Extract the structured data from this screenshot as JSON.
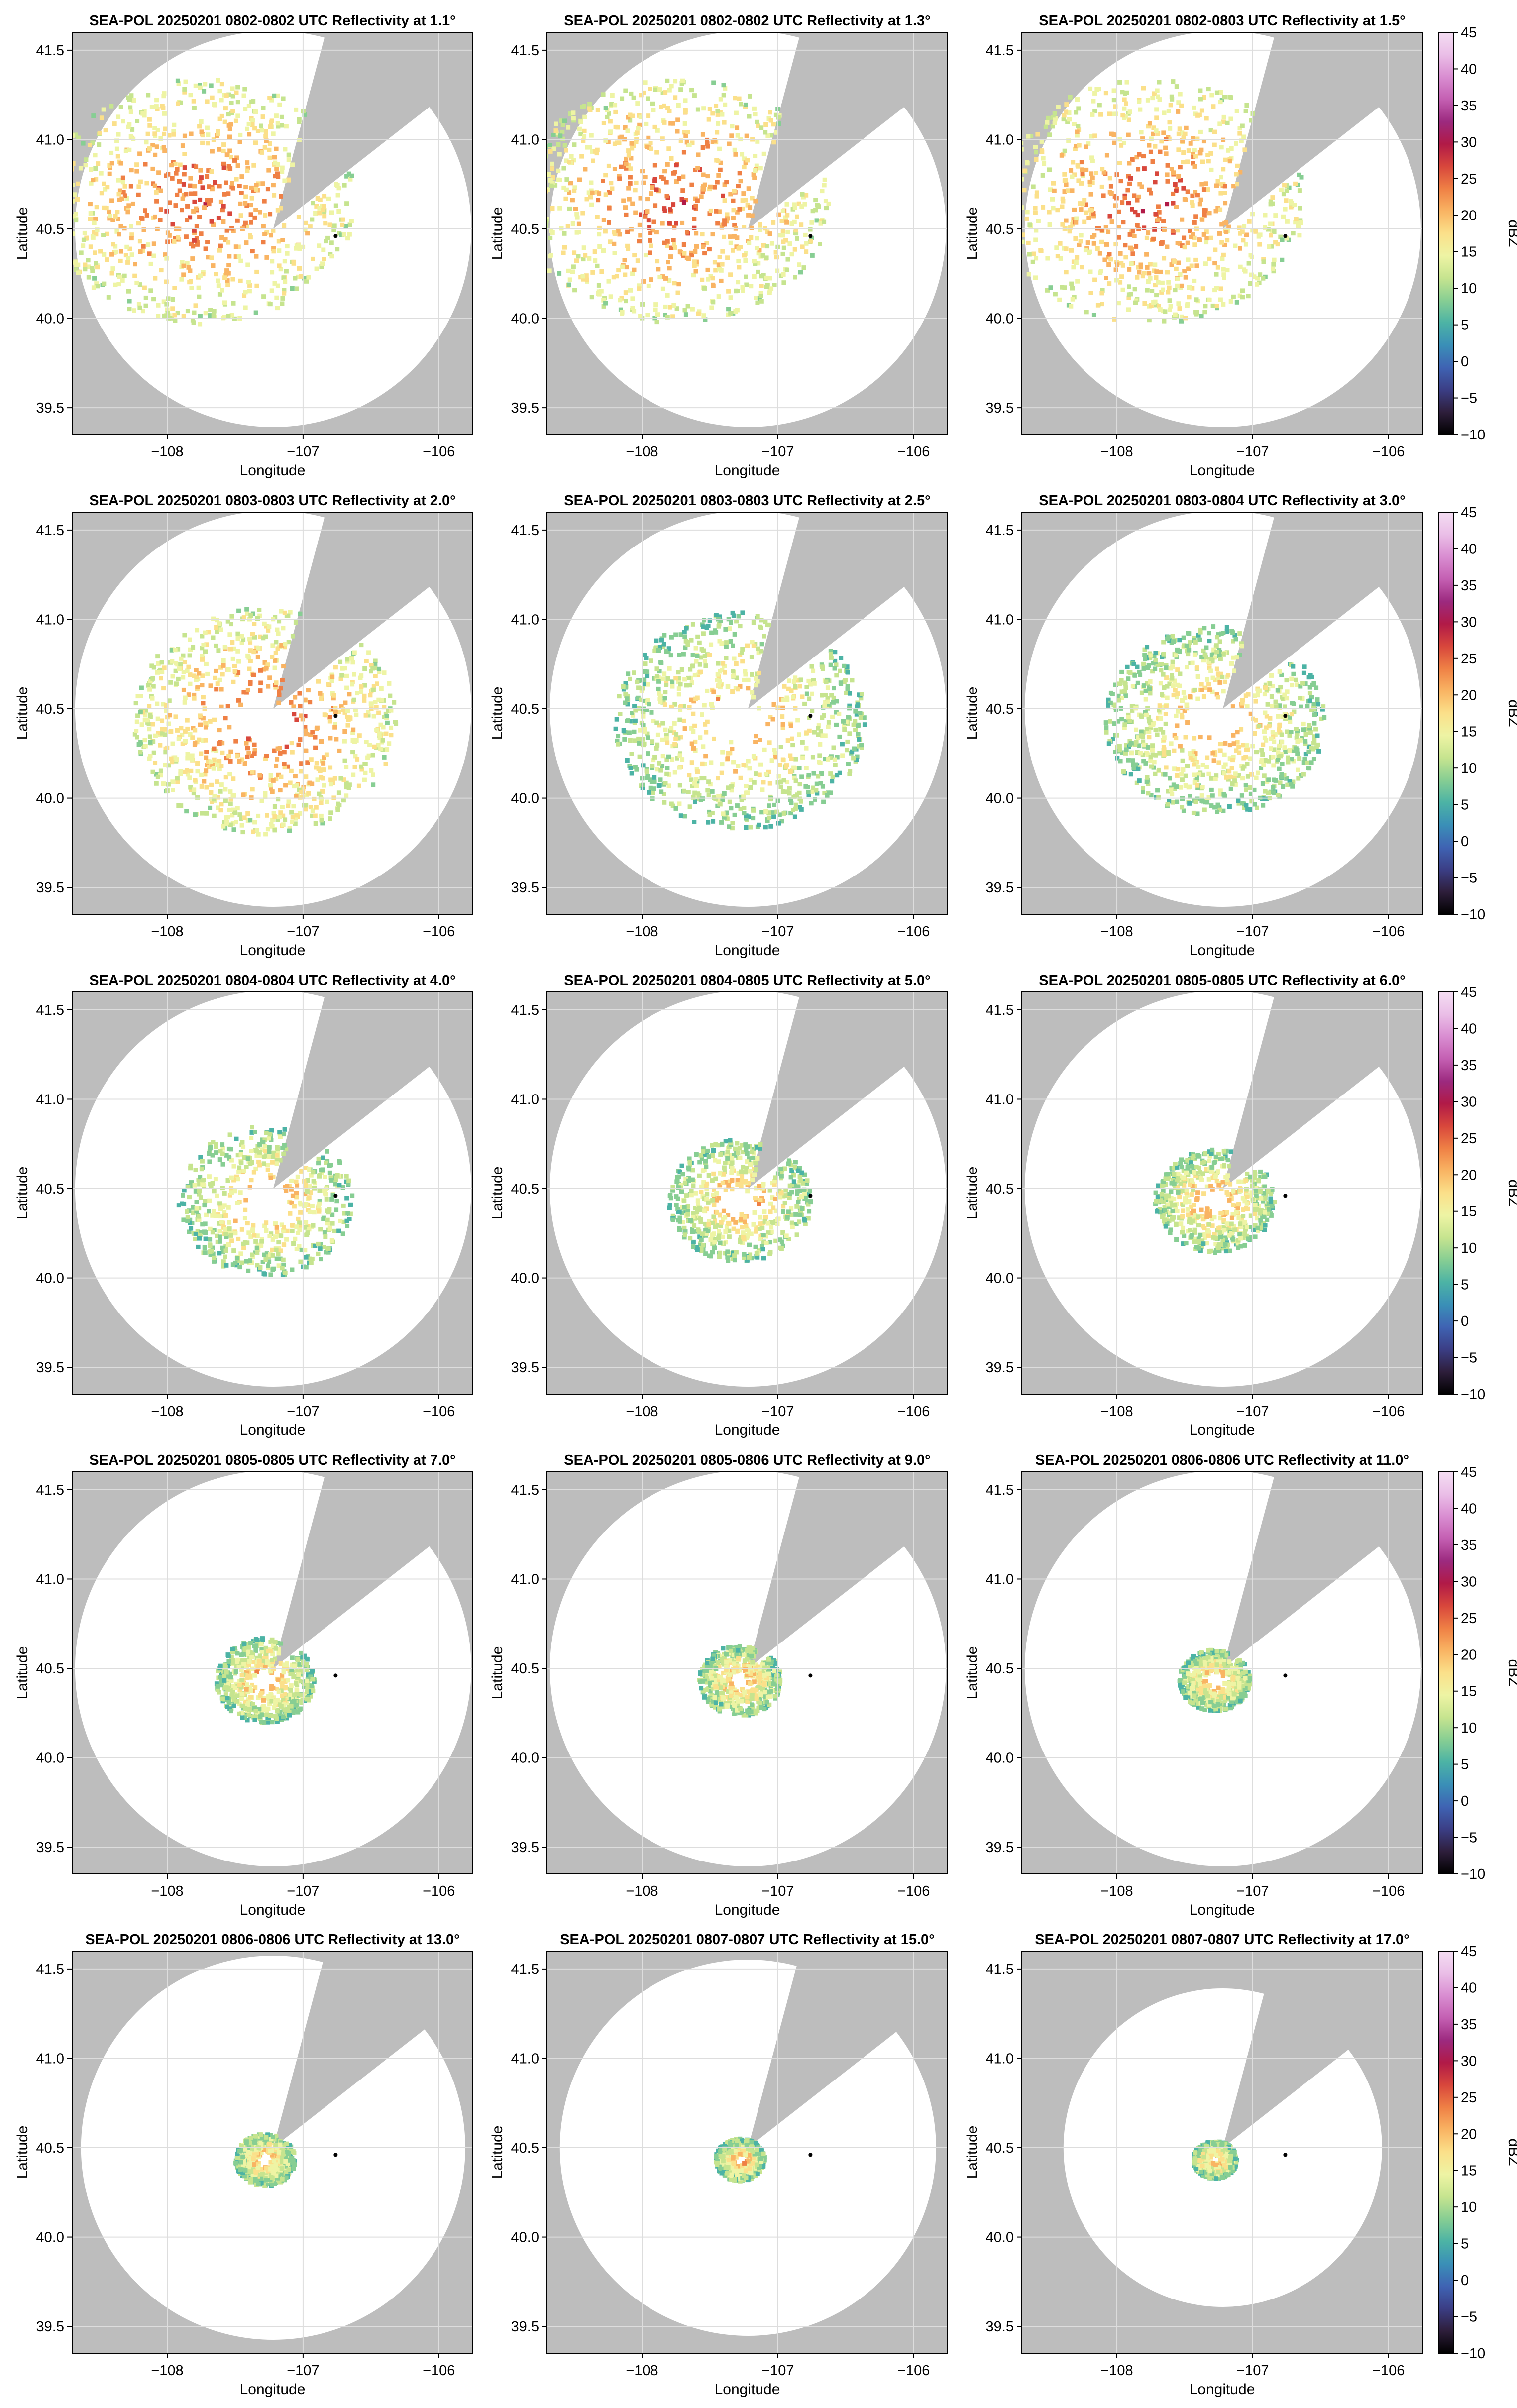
{
  "figure": {
    "xlabel": "Longitude",
    "ylabel": "Latitude",
    "xticks": [
      -108,
      -107,
      -106
    ],
    "yticks": [
      39.5,
      40.0,
      40.5,
      41.0,
      41.5
    ],
    "xlim": [
      -108.7,
      -105.75
    ],
    "ylim": [
      39.35,
      41.6
    ],
    "colorbar_label": "dBZ",
    "colorbar_ticks": [
      -10,
      -5,
      0,
      5,
      10,
      15,
      20,
      25,
      30,
      35,
      40,
      45
    ],
    "colorbar_range": [
      -10,
      45
    ],
    "colormap": [
      "#000000",
      "#2e1e3b",
      "#3b3e85",
      "#3f63b3",
      "#3a8fb7",
      "#4cb3a5",
      "#87ce93",
      "#c6e48f",
      "#eef4a4",
      "#fbe08a",
      "#f9b463",
      "#ef8045",
      "#d8473c",
      "#b11a47",
      "#9c2a7f",
      "#c45fb2",
      "#d98dd1",
      "#eabee7",
      "#f4ddf2"
    ],
    "colors": {
      "masked": "#bdbdbd",
      "sweep": "#ffffff",
      "grid": "#dddddd",
      "radar_site_marker": "#000000"
    },
    "radar_site": {
      "lon": -106.76,
      "lat": 40.46
    },
    "sweep_center": {
      "lon": -107.22,
      "lat": 40.5
    }
  },
  "chart_data": [
    {
      "type": "heatmap",
      "title": "SEA-POL 20250201 0802-0802 UTC Reflectivity at 1.1°"
    },
    {
      "type": "heatmap",
      "title": "SEA-POL 20250201 0802-0802 UTC Reflectivity at 1.3°"
    },
    {
      "type": "heatmap",
      "title": "SEA-POL 20250201 0802-0803 UTC Reflectivity at 1.5°"
    },
    {
      "type": "heatmap",
      "title": "SEA-POL 20250201 0803-0803 UTC Reflectivity at 2.0°"
    },
    {
      "type": "heatmap",
      "title": "SEA-POL 20250201 0803-0803 UTC Reflectivity at 2.5°"
    },
    {
      "type": "heatmap",
      "title": "SEA-POL 20250201 0803-0804 UTC Reflectivity at 3.0°"
    },
    {
      "type": "heatmap",
      "title": "SEA-POL 20250201 0804-0804 UTC Reflectivity at 4.0°"
    },
    {
      "type": "heatmap",
      "title": "SEA-POL 20250201 0804-0805 UTC Reflectivity at 5.0°"
    },
    {
      "type": "heatmap",
      "title": "SEA-POL 20250201 0805-0805 UTC Reflectivity at 6.0°"
    },
    {
      "type": "heatmap",
      "title": "SEA-POL 20250201 0805-0805 UTC Reflectivity at 7.0°"
    },
    {
      "type": "heatmap",
      "title": "SEA-POL 20250201 0805-0806 UTC Reflectivity at 9.0°"
    },
    {
      "type": "heatmap",
      "title": "SEA-POL 20250201 0806-0806 UTC Reflectivity at 11.0°"
    },
    {
      "type": "heatmap",
      "title": "SEA-POL 20250201 0806-0806 UTC Reflectivity at 13.0°"
    },
    {
      "type": "heatmap",
      "title": "SEA-POL 20250201 0807-0807 UTC Reflectivity at 15.0°"
    },
    {
      "type": "heatmap",
      "title": "SEA-POL 20250201 0807-0807 UTC Reflectivity at 17.0°"
    }
  ]
}
